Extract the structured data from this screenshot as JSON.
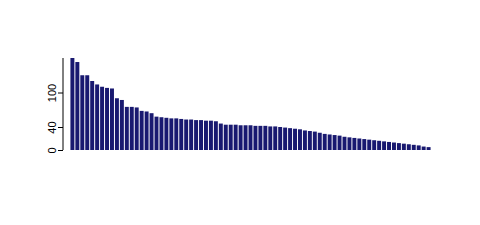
{
  "chart_data": {
    "type": "bar",
    "categories": [
      null,
      null,
      null,
      null,
      null,
      null,
      null,
      null,
      null,
      null,
      null,
      null,
      null,
      null,
      null,
      null,
      null,
      null,
      null,
      null,
      null,
      null,
      null,
      null,
      null,
      null,
      null,
      null,
      null,
      null,
      null,
      null,
      null,
      null,
      null,
      null,
      null,
      null,
      null,
      null,
      null,
      null,
      null,
      null,
      null,
      null,
      null,
      null,
      null,
      null,
      null,
      null,
      null,
      null,
      null,
      null,
      null,
      null,
      null,
      null,
      null,
      null,
      null,
      null,
      null,
      null,
      null,
      null,
      null,
      null,
      null,
      null,
      null
    ],
    "values": [
      160,
      153,
      130,
      130,
      120,
      114,
      110,
      108,
      107,
      90,
      87,
      75,
      75,
      74,
      68,
      67,
      64,
      58,
      57,
      56,
      55,
      55,
      54,
      53,
      53,
      52,
      52,
      51,
      51,
      50,
      46,
      44,
      44,
      44,
      43,
      43,
      43,
      42,
      42,
      42,
      41,
      41,
      40,
      39,
      38,
      37,
      36,
      34,
      33,
      32,
      30,
      28,
      27,
      26,
      25,
      23,
      22,
      21,
      20,
      19,
      18,
      17,
      16,
      15,
      14,
      13,
      12,
      11,
      10,
      9,
      8,
      6,
      5
    ],
    "color": "#191970",
    "ylim": [
      0,
      160
    ],
    "yticks": [
      0,
      40,
      100
    ],
    "tick_labels": "y"
  }
}
